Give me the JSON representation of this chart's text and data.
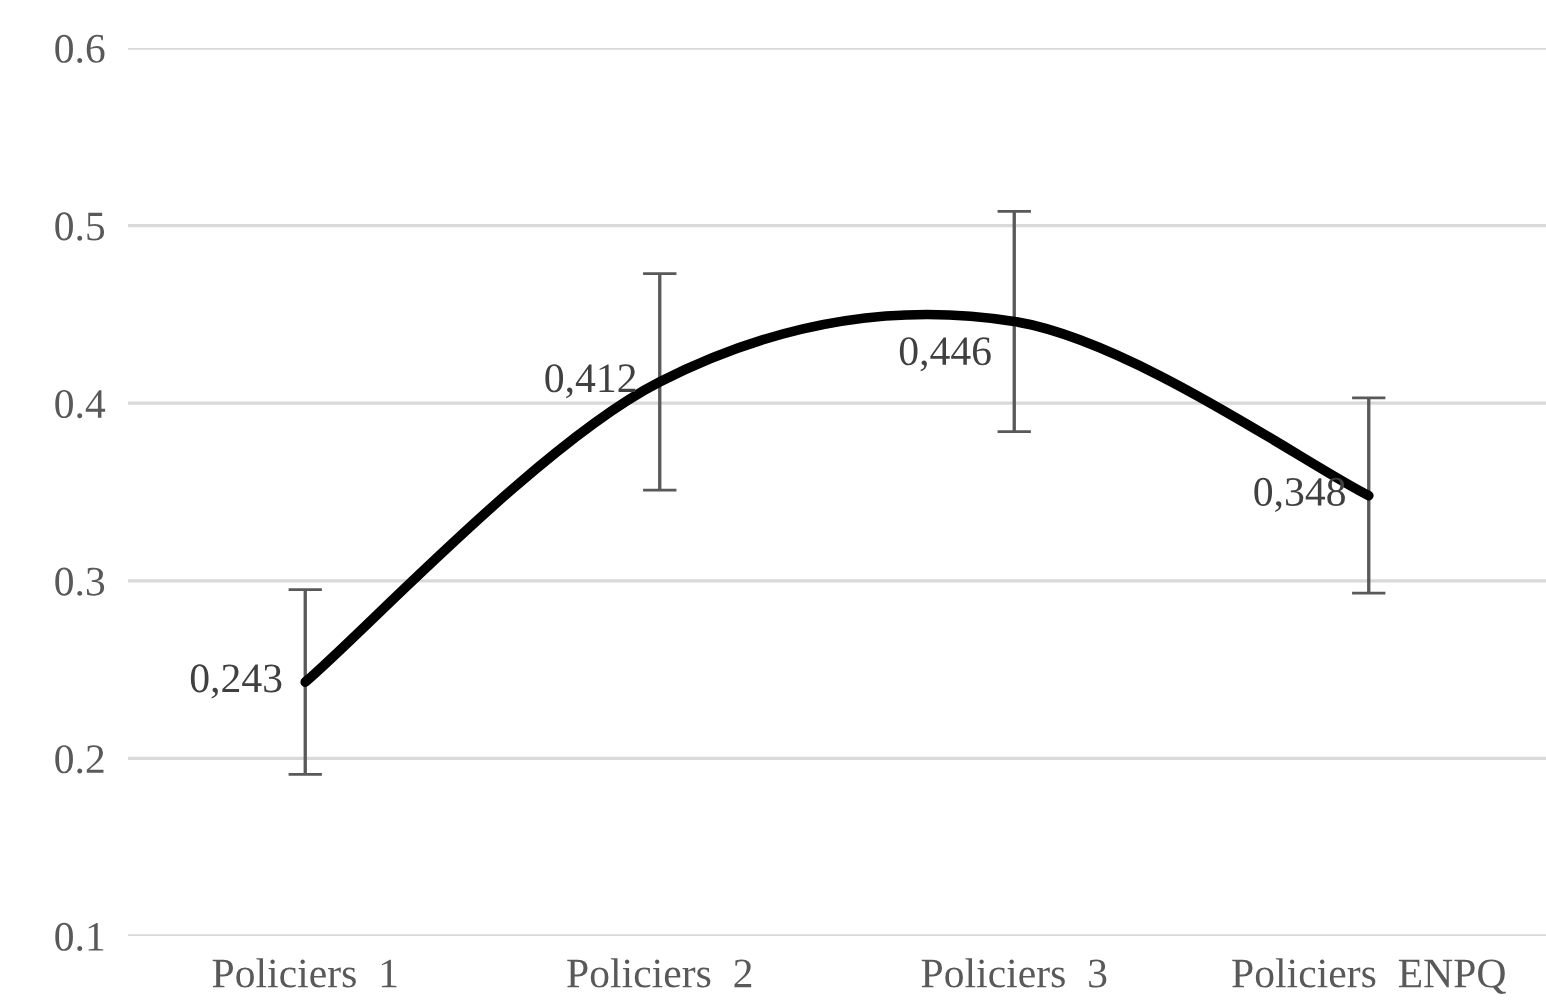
{
  "chart_data": {
    "type": "line",
    "categories": [
      "Policiers  1",
      "Policiers  2",
      "Policiers  3",
      "Policiers  ENPQ"
    ],
    "series": [
      {
        "color": "#000000",
        "values": [
          0.243,
          0.412,
          0.446,
          0.348
        ],
        "errors": [
          0.052,
          0.061,
          0.062,
          0.055
        ],
        "value_labels": [
          "0,243",
          "0,412",
          "0,446",
          "0,348"
        ]
      }
    ],
    "ylim": [
      0.1,
      0.6
    ],
    "yticks": [
      0.1,
      0.2,
      0.3,
      0.4,
      0.5,
      0.6
    ],
    "grid": "y",
    "legend": false,
    "marker": "none",
    "line_style": "solid"
  }
}
